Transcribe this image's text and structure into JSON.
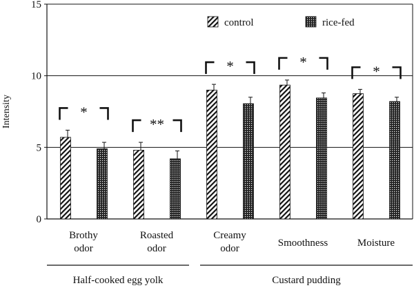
{
  "chart_data": {
    "type": "bar",
    "ylabel": "Intensity",
    "ylim": [
      0,
      15
    ],
    "y_ticks": [
      0,
      5,
      10,
      15
    ],
    "reference_lines": [
      5,
      10
    ],
    "grid": false,
    "legend_position": "top-right",
    "categories": [
      {
        "lines": [
          "Brothy",
          "odor"
        ],
        "significance": "*"
      },
      {
        "lines": [
          "Roasted",
          "odor"
        ],
        "significance": "**"
      },
      {
        "lines": [
          "Creamy",
          "odor"
        ],
        "significance": "*"
      },
      {
        "lines": [
          "Smoothness"
        ],
        "significance": "*"
      },
      {
        "lines": [
          "Moisture"
        ],
        "significance": "*"
      }
    ],
    "series": [
      {
        "name": "control",
        "pattern": "diagonal-hatch",
        "values": [
          5.7,
          4.8,
          9.0,
          9.35,
          8.75
        ],
        "errors": [
          0.5,
          0.55,
          0.4,
          0.35,
          0.3
        ]
      },
      {
        "name": "rice-fed",
        "pattern": "dotted",
        "values": [
          4.9,
          4.2,
          8.05,
          8.45,
          8.2
        ],
        "errors": [
          0.45,
          0.55,
          0.45,
          0.35,
          0.3
        ]
      }
    ],
    "groups": [
      {
        "label": "Half-cooked egg yolk",
        "categories": [
          0,
          1
        ]
      },
      {
        "label": "Custard pudding",
        "categories": [
          2,
          3,
          4
        ]
      }
    ]
  }
}
